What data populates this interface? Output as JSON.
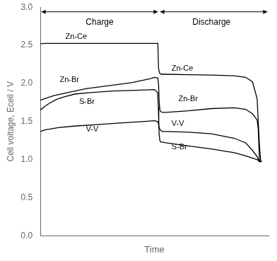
{
  "chart_data": {
    "type": "line",
    "xlabel": "Time",
    "ylabel": "Cell voltage, Ecell / V",
    "xlim": [
      0.0,
      1.0
    ],
    "xticks": [],
    "ylim": [
      0.0,
      3.0
    ],
    "yticks": [
      {
        "value": 0.0,
        "label": "0.0"
      },
      0.5,
      {
        "value": 1.0,
        "label": "1.0"
      },
      1.5,
      {
        "value": 2.0,
        "label": "2.0"
      },
      2.5,
      {
        "value": 3.0,
        "label": "3.0"
      }
    ],
    "tick_labels": "y",
    "grid": false,
    "color": "#000000",
    "series": [
      {
        "name": "Zn-Ce",
        "x": [
          0.0,
          0.02,
          0.5,
          0.515,
          0.518,
          0.522,
          0.525,
          0.53,
          0.55,
          0.65,
          0.75,
          0.85,
          0.9,
          0.93,
          0.95,
          0.96,
          0.965,
          0.97
        ],
        "values": [
          2.52,
          2.525,
          2.525,
          2.525,
          2.2,
          2.14,
          2.13,
          2.12,
          2.12,
          2.115,
          2.11,
          2.1,
          2.08,
          2.02,
          1.8,
          1.2,
          1.0,
          0.97
        ]
      },
      {
        "name": "Zn-Br",
        "x": [
          0.0,
          0.02,
          0.06,
          0.12,
          0.2,
          0.3,
          0.4,
          0.48,
          0.5,
          0.515,
          0.518,
          0.521,
          0.524,
          0.528,
          0.535,
          0.55,
          0.65,
          0.75,
          0.85,
          0.9,
          0.93,
          0.95,
          0.955,
          0.96,
          0.965
        ],
        "values": [
          1.78,
          1.8,
          1.84,
          1.88,
          1.93,
          1.97,
          2.01,
          2.06,
          2.08,
          2.07,
          2.0,
          1.75,
          1.65,
          1.63,
          1.62,
          1.62,
          1.64,
          1.67,
          1.68,
          1.66,
          1.6,
          1.52,
          1.4,
          1.0,
          0.97
        ]
      },
      {
        "name": "S-Br",
        "x": [
          0.0,
          0.02,
          0.04,
          0.07,
          0.1,
          0.15,
          0.22,
          0.32,
          0.42,
          0.5,
          0.514,
          0.517,
          0.519,
          0.521,
          0.524,
          0.528,
          0.535,
          0.55,
          0.65,
          0.75,
          0.85,
          0.9,
          0.93,
          0.95,
          0.955,
          0.96,
          0.965
        ],
        "values": [
          1.65,
          1.7,
          1.74,
          1.79,
          1.82,
          1.86,
          1.88,
          1.9,
          1.91,
          1.92,
          1.88,
          1.7,
          1.45,
          1.32,
          1.25,
          1.23,
          1.23,
          1.22,
          1.18,
          1.14,
          1.09,
          1.05,
          1.02,
          1.0,
          0.99,
          0.975,
          0.97
        ]
      },
      {
        "name": "V-V",
        "x": [
          0.0,
          0.02,
          0.08,
          0.15,
          0.25,
          0.35,
          0.45,
          0.5,
          0.514,
          0.517,
          0.519,
          0.521,
          0.524,
          0.528,
          0.535,
          0.55,
          0.65,
          0.75,
          0.85,
          0.9,
          0.93,
          0.95,
          0.955,
          0.96,
          0.965
        ],
        "values": [
          1.37,
          1.39,
          1.42,
          1.44,
          1.46,
          1.48,
          1.5,
          1.51,
          1.5,
          1.48,
          1.45,
          1.42,
          1.4,
          1.38,
          1.37,
          1.37,
          1.36,
          1.34,
          1.28,
          1.22,
          1.12,
          1.04,
          1.01,
          0.975,
          0.97
        ]
      }
    ],
    "annotations": [
      {
        "text": "Zn-Ce",
        "x": 0.11,
        "y": 2.61
      },
      {
        "text": "Zn-Br",
        "x": 0.085,
        "y": 2.05
      },
      {
        "text": "S-Br",
        "x": 0.17,
        "y": 1.76
      },
      {
        "text": "V-V",
        "x": 0.2,
        "y": 1.4
      },
      {
        "text": "Zn-Ce",
        "x": 0.575,
        "y": 2.19
      },
      {
        "text": "Zn-Br",
        "x": 0.605,
        "y": 1.8
      },
      {
        "text": "S-Br",
        "x": 0.575,
        "y": 1.16
      },
      {
        "text": "V-V",
        "x": 0.575,
        "y": 1.47
      },
      {
        "text": "Charge",
        "x": 0.26,
        "y": 2.86
      },
      {
        "text": "Discharge",
        "x": 0.75,
        "y": 2.86
      }
    ],
    "arrows": [
      {
        "x": [
          0.005,
          0.515
        ],
        "y": 2.94
      },
      {
        "x": [
          0.525,
          0.995
        ],
        "y": 2.94
      }
    ]
  }
}
